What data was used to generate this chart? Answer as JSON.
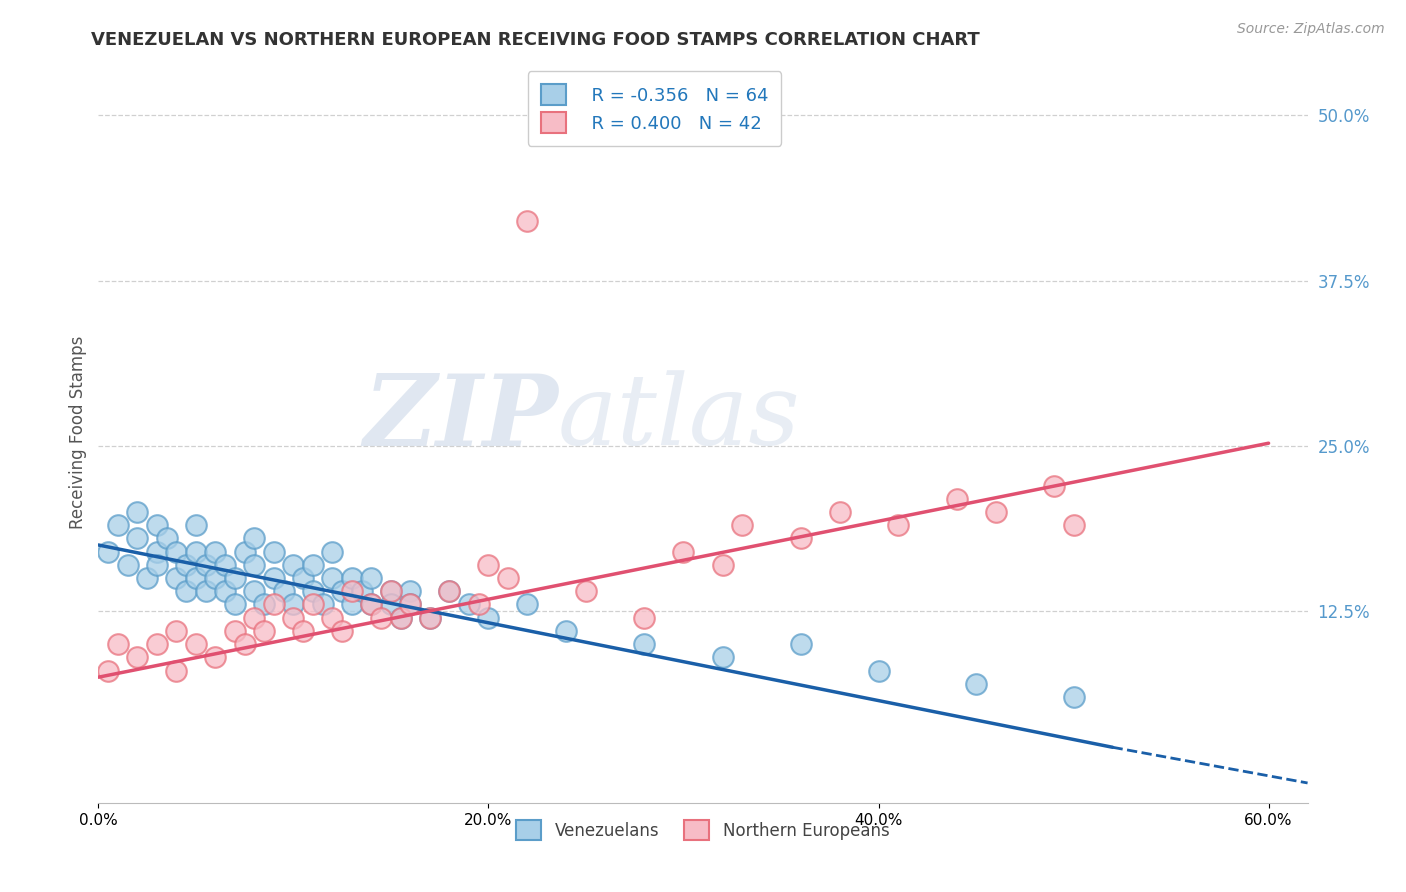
{
  "title": "VENEZUELAN VS NORTHERN EUROPEAN RECEIVING FOOD STAMPS CORRELATION CHART",
  "source": "Source: ZipAtlas.com",
  "ylabel": "Receiving Food Stamps",
  "xlim": [
    0.0,
    0.62
  ],
  "ylim": [
    -0.02,
    0.54
  ],
  "xtick_labels": [
    "0.0%",
    "20.0%",
    "40.0%",
    "60.0%"
  ],
  "xtick_positions": [
    0.0,
    0.2,
    0.4,
    0.6
  ],
  "ytick_labels": [
    "12.5%",
    "25.0%",
    "37.5%",
    "50.0%"
  ],
  "ytick_positions": [
    0.125,
    0.25,
    0.375,
    0.5
  ],
  "venezuelan_color": "#a8cfe8",
  "venezuelan_edge": "#5b9dc9",
  "northern_color": "#f7bcc6",
  "northern_edge": "#e8717d",
  "venezuelan_R": -0.356,
  "venezuelan_N": 64,
  "northern_R": 0.4,
  "northern_N": 42,
  "venezuelan_line_color": "#1a5fa8",
  "northern_line_color": "#e05070",
  "background_color": "#ffffff",
  "grid_color": "#d0d0d0",
  "watermark_zip": "ZIP",
  "watermark_atlas": "atlas",
  "venezuelan_x": [
    0.005,
    0.01,
    0.015,
    0.02,
    0.02,
    0.025,
    0.03,
    0.03,
    0.03,
    0.035,
    0.04,
    0.04,
    0.045,
    0.045,
    0.05,
    0.05,
    0.05,
    0.055,
    0.055,
    0.06,
    0.06,
    0.065,
    0.065,
    0.07,
    0.07,
    0.075,
    0.08,
    0.08,
    0.08,
    0.085,
    0.09,
    0.09,
    0.095,
    0.1,
    0.1,
    0.105,
    0.11,
    0.11,
    0.115,
    0.12,
    0.12,
    0.125,
    0.13,
    0.13,
    0.135,
    0.14,
    0.14,
    0.15,
    0.15,
    0.155,
    0.16,
    0.16,
    0.17,
    0.18,
    0.19,
    0.2,
    0.22,
    0.24,
    0.28,
    0.32,
    0.36,
    0.4,
    0.45,
    0.5
  ],
  "venezuelan_y": [
    0.17,
    0.19,
    0.16,
    0.18,
    0.2,
    0.15,
    0.17,
    0.19,
    0.16,
    0.18,
    0.15,
    0.17,
    0.14,
    0.16,
    0.15,
    0.17,
    0.19,
    0.14,
    0.16,
    0.15,
    0.17,
    0.14,
    0.16,
    0.13,
    0.15,
    0.17,
    0.14,
    0.16,
    0.18,
    0.13,
    0.15,
    0.17,
    0.14,
    0.13,
    0.16,
    0.15,
    0.14,
    0.16,
    0.13,
    0.15,
    0.17,
    0.14,
    0.13,
    0.15,
    0.14,
    0.13,
    0.15,
    0.14,
    0.13,
    0.12,
    0.14,
    0.13,
    0.12,
    0.14,
    0.13,
    0.12,
    0.13,
    0.11,
    0.1,
    0.09,
    0.1,
    0.08,
    0.07,
    0.06
  ],
  "northern_x": [
    0.005,
    0.01,
    0.02,
    0.03,
    0.04,
    0.04,
    0.05,
    0.06,
    0.07,
    0.075,
    0.08,
    0.085,
    0.09,
    0.1,
    0.105,
    0.11,
    0.12,
    0.125,
    0.13,
    0.14,
    0.145,
    0.15,
    0.155,
    0.16,
    0.17,
    0.18,
    0.195,
    0.21,
    0.22,
    0.3,
    0.33,
    0.36,
    0.38,
    0.41,
    0.44,
    0.46,
    0.49,
    0.5,
    0.2,
    0.25,
    0.28,
    0.32
  ],
  "northern_y": [
    0.08,
    0.1,
    0.09,
    0.1,
    0.08,
    0.11,
    0.1,
    0.09,
    0.11,
    0.1,
    0.12,
    0.11,
    0.13,
    0.12,
    0.11,
    0.13,
    0.12,
    0.11,
    0.14,
    0.13,
    0.12,
    0.14,
    0.12,
    0.13,
    0.12,
    0.14,
    0.13,
    0.15,
    0.42,
    0.17,
    0.19,
    0.18,
    0.2,
    0.19,
    0.21,
    0.2,
    0.22,
    0.19,
    0.16,
    0.14,
    0.12,
    0.16
  ],
  "vline_x0": 0.0,
  "vline_x1": 0.52,
  "vline_y0": 0.175,
  "vline_y1": 0.022,
  "vline_dash_x0": 0.52,
  "vline_dash_x1": 0.62,
  "vline_dash_y0": 0.022,
  "vline_dash_y1": -0.005,
  "nline_x0": 0.0,
  "nline_x1": 0.6,
  "nline_y0": 0.075,
  "nline_y1": 0.252
}
